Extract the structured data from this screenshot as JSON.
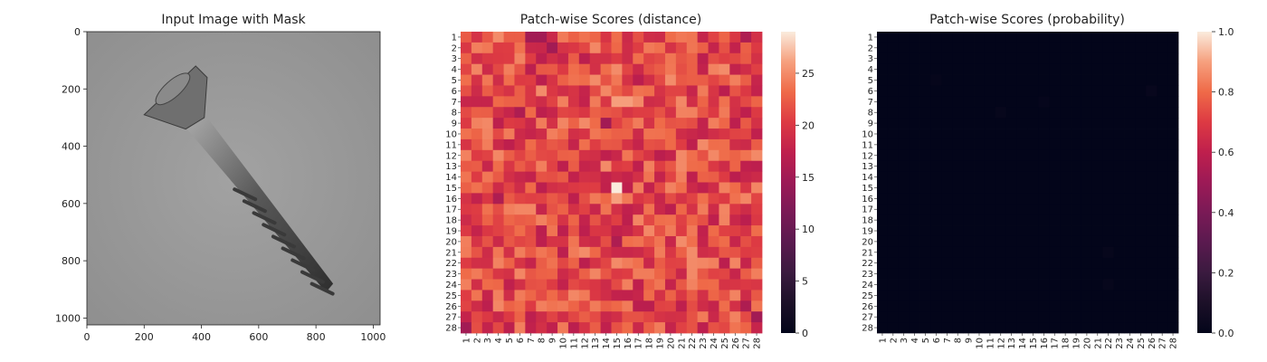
{
  "chart_data": [
    {
      "type": "image",
      "title": "Input Image with Mask",
      "xlim": [
        0,
        1024
      ],
      "ylim": [
        1024,
        0
      ],
      "x_ticks": [
        0,
        200,
        400,
        600,
        800,
        1000
      ],
      "y_ticks": [
        0,
        200,
        400,
        600,
        800,
        1000
      ],
      "image_description": "Grayscale photograph of a metal countersunk screw lying diagonally on a light grey background",
      "background_color": "#9a9a9a"
    },
    {
      "type": "heatmap",
      "title": "Patch-wise Scores (distance)",
      "rows": 28,
      "cols": 28,
      "row_labels": [
        "1",
        "2",
        "3",
        "4",
        "5",
        "6",
        "7",
        "8",
        "9",
        "10",
        "11",
        "12",
        "13",
        "14",
        "15",
        "16",
        "17",
        "18",
        "19",
        "20",
        "21",
        "22",
        "23",
        "24",
        "25",
        "26",
        "27",
        "28"
      ],
      "col_labels": [
        "1",
        "2",
        "3",
        "4",
        "5",
        "6",
        "7",
        "8",
        "9",
        "10",
        "11",
        "12",
        "13",
        "14",
        "15",
        "16",
        "17",
        "18",
        "19",
        "20",
        "21",
        "22",
        "23",
        "24",
        "25",
        "26",
        "27",
        "28"
      ],
      "value_range": [
        0,
        29
      ],
      "typical_range": [
        17,
        25
      ],
      "colorbar_ticks": [
        0,
        5,
        10,
        15,
        20,
        25
      ],
      "colormap": "rocket",
      "notable_cells": [
        {
          "row": 1,
          "col": 7,
          "value": 15
        },
        {
          "row": 1,
          "col": 8,
          "value": 15
        },
        {
          "row": 2,
          "col": 9,
          "value": 15
        },
        {
          "row": 1,
          "col": 27,
          "value": 16
        },
        {
          "row": 28,
          "col": 1,
          "value": 15
        },
        {
          "row": 27,
          "col": 28,
          "value": 15
        },
        {
          "row": 26,
          "col": 27,
          "value": 16
        },
        {
          "row": 15,
          "col": 15,
          "value": 29
        },
        {
          "row": 16,
          "col": 15,
          "value": 26
        },
        {
          "row": 7,
          "col": 15,
          "value": 26
        },
        {
          "row": 7,
          "col": 16,
          "value": 26
        },
        {
          "row": 6,
          "col": 8,
          "value": 25
        },
        {
          "row": 21,
          "col": 22,
          "value": 25
        },
        {
          "row": 20,
          "col": 21,
          "value": 25
        },
        {
          "row": 5,
          "col": 20,
          "value": 25
        },
        {
          "row": 4,
          "col": 25,
          "value": 25
        },
        {
          "row": 9,
          "col": 14,
          "value": 15
        },
        {
          "row": 8,
          "col": 6,
          "value": 16
        },
        {
          "row": 16,
          "col": 4,
          "value": 16
        },
        {
          "row": 20,
          "col": 15,
          "value": 16
        }
      ]
    },
    {
      "type": "heatmap",
      "title": "Patch-wise Scores (probability)",
      "rows": 28,
      "cols": 28,
      "row_labels": [
        "1",
        "2",
        "3",
        "4",
        "5",
        "6",
        "7",
        "8",
        "9",
        "10",
        "11",
        "12",
        "13",
        "14",
        "15",
        "16",
        "17",
        "18",
        "19",
        "20",
        "21",
        "22",
        "23",
        "24",
        "25",
        "26",
        "27",
        "28"
      ],
      "col_labels": [
        "1",
        "2",
        "3",
        "4",
        "5",
        "6",
        "7",
        "8",
        "9",
        "10",
        "11",
        "12",
        "13",
        "14",
        "15",
        "16",
        "17",
        "18",
        "19",
        "20",
        "21",
        "22",
        "23",
        "24",
        "25",
        "26",
        "27",
        "28"
      ],
      "value_range": [
        0,
        1
      ],
      "typical_value": 0.0,
      "colorbar_ticks": [
        0.0,
        0.2,
        0.4,
        0.6,
        0.8,
        1.0
      ],
      "colorbar_tick_labels": [
        "0.0",
        "0.2",
        "0.4",
        "0.6",
        "0.8",
        "1.0"
      ],
      "colormap": "rocket",
      "notable_cells": [
        {
          "row": 6,
          "col": 26,
          "value": 0.02
        },
        {
          "row": 8,
          "col": 12,
          "value": 0.015
        },
        {
          "row": 7,
          "col": 16,
          "value": 0.012
        },
        {
          "row": 21,
          "col": 22,
          "value": 0.015
        },
        {
          "row": 24,
          "col": 22,
          "value": 0.015
        },
        {
          "row": 5,
          "col": 6,
          "value": 0.01
        }
      ]
    }
  ]
}
